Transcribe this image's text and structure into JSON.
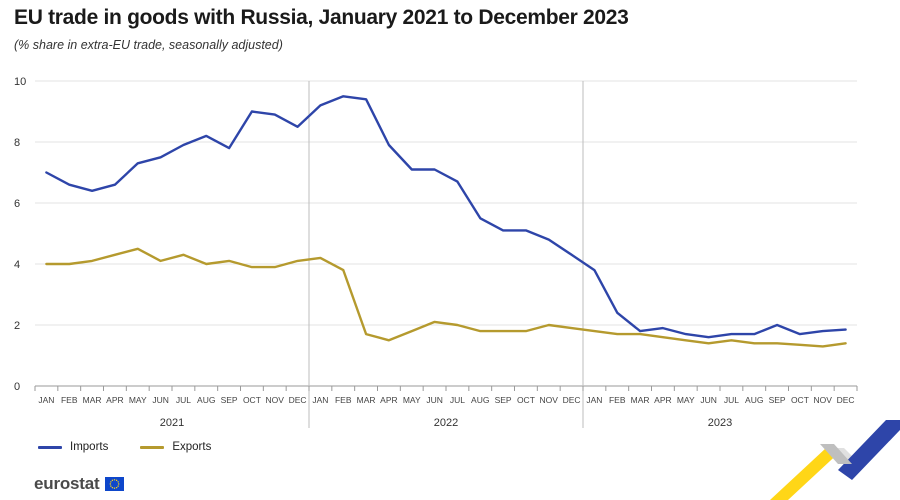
{
  "title": "EU trade in goods with Russia, January 2021 to December 2023",
  "subtitle": "(% share in extra-EU trade, seasonally adjusted)",
  "brand": "eurostat",
  "colors": {
    "imports": "#2e45a9",
    "exports": "#b59a2e",
    "grid": "#e3e3e3",
    "separator": "#bdbdbd",
    "axis": "#9a9a9a"
  },
  "chart_data": {
    "type": "line",
    "title": "EU trade in goods with Russia, January 2021 to December 2023",
    "subtitle": "(% share in extra-EU trade, seasonally adjusted)",
    "categories": [
      "JAN",
      "FEB",
      "MAR",
      "APR",
      "MAY",
      "JUN",
      "JUL",
      "AUG",
      "SEP",
      "OCT",
      "NOV",
      "DEC",
      "JAN",
      "FEB",
      "MAR",
      "APR",
      "MAY",
      "JUN",
      "JUL",
      "AUG",
      "SEP",
      "OCT",
      "NOV",
      "DEC",
      "JAN",
      "FEB",
      "MAR",
      "APR",
      "MAY",
      "JUN",
      "JUL",
      "AUG",
      "SEP",
      "OCT",
      "NOV",
      "DEC"
    ],
    "years": [
      "2021",
      "2022",
      "2023"
    ],
    "ylim": [
      0,
      10
    ],
    "yticks": [
      0,
      2,
      4,
      6,
      8,
      10
    ],
    "grid": true,
    "legend_position": "bottom-left",
    "series": [
      {
        "name": "Imports",
        "color": "#2e45a9",
        "values": [
          7.0,
          6.6,
          6.4,
          6.6,
          7.3,
          7.5,
          7.9,
          8.2,
          7.8,
          9.0,
          8.9,
          8.5,
          9.2,
          9.5,
          9.4,
          7.9,
          7.1,
          7.1,
          6.7,
          5.5,
          5.1,
          5.1,
          4.8,
          4.3,
          3.8,
          2.4,
          1.8,
          1.9,
          1.7,
          1.6,
          1.7,
          1.7,
          2.0,
          1.7,
          1.8,
          1.85
        ]
      },
      {
        "name": "Exports",
        "color": "#b59a2e",
        "values": [
          4.0,
          4.0,
          4.1,
          4.3,
          4.5,
          4.1,
          4.3,
          4.0,
          4.1,
          3.9,
          3.9,
          4.1,
          4.2,
          3.8,
          1.7,
          1.5,
          1.8,
          2.1,
          2.0,
          1.8,
          1.8,
          1.8,
          2.0,
          1.9,
          1.8,
          1.7,
          1.7,
          1.6,
          1.5,
          1.4,
          1.5,
          1.4,
          1.4,
          1.35,
          1.3,
          1.4
        ]
      }
    ]
  }
}
